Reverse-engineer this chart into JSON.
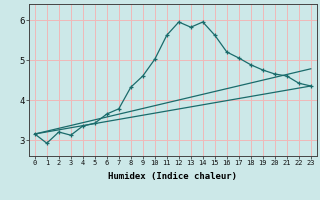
{
  "xlabel": "Humidex (Indice chaleur)",
  "xlim": [
    -0.5,
    23.5
  ],
  "ylim": [
    2.6,
    6.4
  ],
  "yticks": [
    3,
    4,
    5,
    6
  ],
  "xticks": [
    0,
    1,
    2,
    3,
    4,
    5,
    6,
    7,
    8,
    9,
    10,
    11,
    12,
    13,
    14,
    15,
    16,
    17,
    18,
    19,
    20,
    21,
    22,
    23
  ],
  "bg_color": "#cce8e8",
  "line_color": "#1a6b6b",
  "grid_color": "#f0b8b8",
  "lines": [
    {
      "x": [
        0,
        1,
        2,
        3,
        4,
        5,
        6,
        7,
        8,
        9,
        10,
        11,
        12,
        13,
        14,
        15,
        16,
        17,
        18,
        19,
        20,
        21,
        22,
        23
      ],
      "y": [
        3.15,
        2.92,
        3.2,
        3.12,
        3.35,
        3.42,
        3.65,
        3.78,
        4.32,
        4.6,
        5.02,
        5.62,
        5.95,
        5.82,
        5.95,
        5.62,
        5.2,
        5.05,
        4.88,
        4.75,
        4.65,
        4.6,
        4.42,
        4.35
      ],
      "marker": true
    },
    {
      "x": [
        0,
        23
      ],
      "y": [
        3.15,
        4.35
      ],
      "marker": false
    },
    {
      "x": [
        0,
        23
      ],
      "y": [
        3.15,
        4.78
      ],
      "marker": false
    }
  ]
}
